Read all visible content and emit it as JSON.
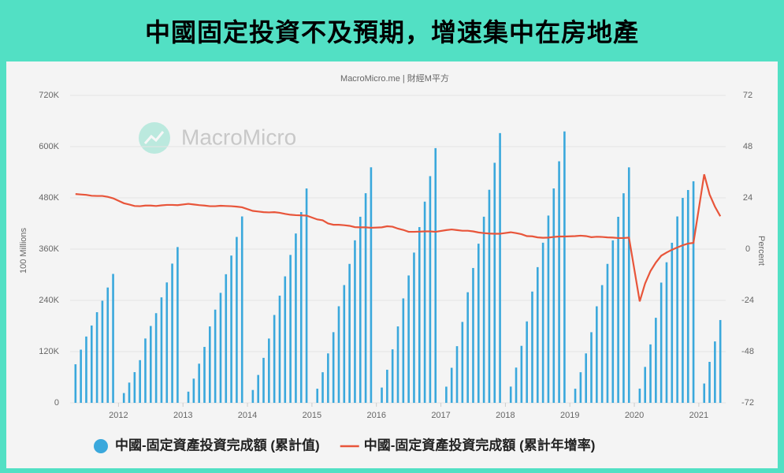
{
  "header": {
    "title": "中國固定投資不及預期，增速集中在房地產"
  },
  "chart_data": {
    "type": "bar-line",
    "subtitle": "MacroMicro.me | 財經M平方",
    "watermark": "MacroMicro",
    "y_label": "100 Millions",
    "y2_label": "Percent",
    "x": [
      "2011-05",
      "2011-06",
      "2011-07",
      "2011-08",
      "2011-09",
      "2011-10",
      "2011-11",
      "2011-12",
      "2012-02",
      "2012-03",
      "2012-04",
      "2012-05",
      "2012-06",
      "2012-07",
      "2012-08",
      "2012-09",
      "2012-10",
      "2012-11",
      "2012-12",
      "2013-02",
      "2013-03",
      "2013-04",
      "2013-05",
      "2013-06",
      "2013-07",
      "2013-08",
      "2013-09",
      "2013-10",
      "2013-11",
      "2013-12",
      "2014-02",
      "2014-03",
      "2014-04",
      "2014-05",
      "2014-06",
      "2014-07",
      "2014-08",
      "2014-09",
      "2014-10",
      "2014-11",
      "2014-12",
      "2015-02",
      "2015-03",
      "2015-04",
      "2015-05",
      "2015-06",
      "2015-07",
      "2015-08",
      "2015-09",
      "2015-10",
      "2015-11",
      "2015-12",
      "2016-02",
      "2016-03",
      "2016-04",
      "2016-05",
      "2016-06",
      "2016-07",
      "2016-08",
      "2016-09",
      "2016-10",
      "2016-11",
      "2016-12",
      "2017-02",
      "2017-03",
      "2017-04",
      "2017-05",
      "2017-06",
      "2017-07",
      "2017-08",
      "2017-09",
      "2017-10",
      "2017-11",
      "2017-12",
      "2018-02",
      "2018-03",
      "2018-04",
      "2018-05",
      "2018-06",
      "2018-07",
      "2018-08",
      "2018-09",
      "2018-10",
      "2018-11",
      "2018-12",
      "2019-02",
      "2019-03",
      "2019-04",
      "2019-05",
      "2019-06",
      "2019-07",
      "2019-08",
      "2019-09",
      "2019-10",
      "2019-11",
      "2019-12",
      "2020-02",
      "2020-03",
      "2020-04",
      "2020-05",
      "2020-06",
      "2020-07",
      "2020-08",
      "2020-09",
      "2020-10",
      "2020-11",
      "2020-12",
      "2021-02",
      "2021-03",
      "2021-04",
      "2021-05"
    ],
    "series": [
      {
        "name": "中國-固定資產投資完成額 (累計值)",
        "color": "#3aa8dc",
        "axis": "y",
        "values": [
          90330,
          124567,
          155315,
          181129,
          212274,
          239196,
          270096,
          301933,
          22900,
          47400,
          71900,
          100000,
          150700,
          180000,
          210000,
          247000,
          282000,
          326047,
          364835,
          26200,
          56700,
          91700,
          131000,
          179000,
          218300,
          257600,
          301200,
          344900,
          388500,
          436528,
          30100,
          65300,
          105400,
          150600,
          205800,
          251000,
          296200,
          346400,
          396600,
          446800,
          502005,
          33100,
          71700,
          115800,
          165500,
          226200,
          275800,
          325400,
          380600,
          435800,
          490900,
          551590,
          35800,
          77500,
          125300,
          179000,
          244600,
          298300,
          351900,
          411600,
          471200,
          530900,
          596501,
          37900,
          82100,
          132700,
          189500,
          259000,
          315800,
          372700,
          435900,
          499000,
          562200,
          631684,
          38100,
          82600,
          133500,
          190700,
          260600,
          317800,
          375000,
          438600,
          502100,
          565700,
          635636,
          33100,
          71700,
          115800,
          165400,
          226100,
          275700,
          325400,
          380500,
          435700,
          490800,
          551478,
          33323,
          84145,
          136824,
          199194,
          281603,
          329214,
          374854,
          436530,
          479922,
          498412,
          518907,
          45236,
          95994,
          143804,
          193917
        ]
      },
      {
        "name": "中國-固定資產投資完成額 (累計年增率)",
        "color": "#e8553a",
        "axis": "y2",
        "values": [
          25.8,
          25.6,
          25.4,
          25.0,
          24.9,
          24.9,
          24.5,
          23.8,
          21.5,
          20.9,
          20.2,
          20.1,
          20.4,
          20.4,
          20.2,
          20.5,
          20.7,
          20.7,
          20.6,
          21.2,
          20.9,
          20.6,
          20.4,
          20.1,
          20.1,
          20.3,
          20.2,
          20.1,
          19.9,
          19.6,
          17.9,
          17.6,
          17.3,
          17.2,
          17.3,
          17.0,
          16.5,
          16.1,
          15.9,
          15.8,
          15.7,
          13.9,
          13.5,
          12.0,
          11.4,
          11.4,
          11.2,
          10.9,
          10.3,
          10.2,
          10.2,
          10.0,
          10.2,
          10.7,
          10.5,
          9.6,
          9.0,
          8.1,
          8.1,
          8.2,
          8.3,
          8.3,
          8.1,
          8.9,
          9.2,
          8.9,
          8.6,
          8.6,
          8.3,
          7.8,
          7.5,
          7.3,
          7.2,
          7.2,
          7.9,
          7.5,
          7.0,
          6.1,
          6.0,
          5.5,
          5.3,
          5.4,
          5.7,
          5.9,
          5.9,
          6.1,
          6.3,
          6.1,
          5.6,
          5.8,
          5.7,
          5.5,
          5.4,
          5.2,
          5.2,
          5.4,
          -24.5,
          -16.1,
          -10.3,
          -6.3,
          -3.1,
          -1.6,
          -0.3,
          0.8,
          1.8,
          2.6,
          2.9,
          35.0,
          25.6,
          19.9,
          15.4
        ]
      }
    ],
    "xlim": [
      "2011-04",
      "2021-06"
    ],
    "xticks": [
      "2012",
      "2013",
      "2014",
      "2015",
      "2016",
      "2017",
      "2018",
      "2019",
      "2020",
      "2021"
    ],
    "ylim": [
      0,
      720000
    ],
    "yticks": [
      0,
      {
        "value": 120000,
        "label": "120K"
      },
      {
        "value": 240000,
        "label": "240K"
      },
      {
        "value": 360000,
        "label": "360K"
      },
      {
        "value": 480000,
        "label": "480K"
      },
      {
        "value": 600000,
        "label": "600K"
      },
      {
        "value": 720000,
        "label": "720K"
      }
    ],
    "y2lim": [
      -72,
      72
    ],
    "y2ticks": [
      -72,
      -48,
      -24,
      0,
      24,
      48,
      72
    ],
    "grid": true,
    "legend": "bottom"
  }
}
